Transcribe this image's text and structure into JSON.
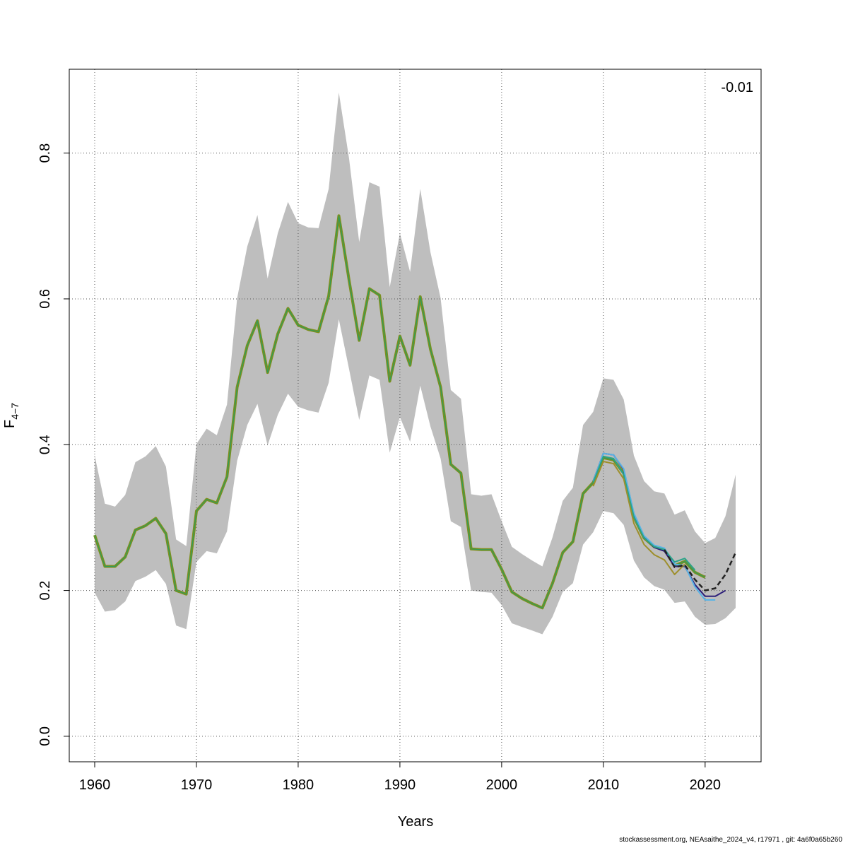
{
  "footer_text": "stockassessment.org, NEAsaithe_2024_v4, r17971 , git: 4a6f0a65b260",
  "chart_data": {
    "type": "line",
    "xlabel": "Years",
    "ylabel_main": "F",
    "ylabel_sub": "4−7",
    "annotation": "-0.01",
    "xlim": [
      1957.5,
      2025.5
    ],
    "ylim": [
      -0.035,
      0.915
    ],
    "xticks": [
      1960,
      1970,
      1980,
      1990,
      2000,
      2010,
      2020
    ],
    "yticks": [
      0.0,
      0.2,
      0.4,
      0.6,
      0.8
    ],
    "ytick_labels": [
      "0.0",
      "0.2",
      "0.4",
      "0.6",
      "0.8"
    ],
    "grid": true,
    "colors": {
      "band": "#bebebe",
      "main": "#7f8f1e",
      "main_overlay": "#2e9d5a",
      "retro_light": "#5ab4e6",
      "retro_teal": "#2aa389",
      "retro_navy": "#2d1f7a",
      "retro_olive": "#9e8f2c",
      "current_dashed": "#222222"
    },
    "years": [
      1960,
      1961,
      1962,
      1963,
      1964,
      1965,
      1966,
      1967,
      1968,
      1969,
      1970,
      1971,
      1972,
      1973,
      1974,
      1975,
      1976,
      1977,
      1978,
      1979,
      1980,
      1981,
      1982,
      1983,
      1984,
      1985,
      1986,
      1987,
      1988,
      1989,
      1990,
      1991,
      1992,
      1993,
      1994,
      1995,
      1996,
      1997,
      1998,
      1999,
      2000,
      2001,
      2002,
      2003,
      2004,
      2005,
      2006,
      2007,
      2008,
      2009,
      2010,
      2011,
      2012,
      2013,
      2014,
      2015,
      2016,
      2017,
      2018,
      2019,
      2020,
      2021,
      2022,
      2023
    ],
    "band_lower": [
      0.197,
      0.171,
      0.173,
      0.185,
      0.213,
      0.219,
      0.228,
      0.209,
      0.152,
      0.147,
      0.239,
      0.254,
      0.251,
      0.281,
      0.378,
      0.427,
      0.456,
      0.399,
      0.441,
      0.47,
      0.452,
      0.447,
      0.444,
      0.485,
      0.572,
      0.504,
      0.434,
      0.495,
      0.489,
      0.389,
      0.438,
      0.404,
      0.481,
      0.425,
      0.381,
      0.295,
      0.287,
      0.2,
      0.198,
      0.197,
      0.18,
      0.155,
      0.15,
      0.145,
      0.14,
      0.164,
      0.198,
      0.21,
      0.263,
      0.28,
      0.309,
      0.306,
      0.29,
      0.241,
      0.218,
      0.206,
      0.201,
      0.183,
      0.185,
      0.164,
      0.153,
      0.154,
      0.162,
      0.176
    ],
    "band_upper": [
      0.385,
      0.319,
      0.315,
      0.331,
      0.376,
      0.384,
      0.398,
      0.37,
      0.27,
      0.261,
      0.401,
      0.422,
      0.413,
      0.455,
      0.601,
      0.672,
      0.715,
      0.628,
      0.69,
      0.733,
      0.704,
      0.698,
      0.697,
      0.751,
      0.883,
      0.793,
      0.678,
      0.76,
      0.754,
      0.616,
      0.69,
      0.637,
      0.751,
      0.664,
      0.601,
      0.475,
      0.463,
      0.332,
      0.33,
      0.332,
      0.295,
      0.26,
      0.25,
      0.241,
      0.233,
      0.273,
      0.323,
      0.341,
      0.427,
      0.445,
      0.491,
      0.489,
      0.462,
      0.385,
      0.35,
      0.336,
      0.333,
      0.304,
      0.31,
      0.281,
      0.265,
      0.272,
      0.302,
      0.359
    ],
    "main_series": [
      0.276,
      0.233,
      0.233,
      0.246,
      0.283,
      0.289,
      0.299,
      0.278,
      0.2,
      0.195,
      0.309,
      0.325,
      0.32,
      0.356,
      0.479,
      0.536,
      0.57,
      0.499,
      0.552,
      0.587,
      0.564,
      0.558,
      0.555,
      0.604,
      0.714,
      0.626,
      0.543,
      0.614,
      0.605,
      0.487,
      0.549,
      0.509,
      0.603,
      0.531,
      0.479,
      0.373,
      0.361,
      0.257,
      0.256,
      0.256,
      0.229,
      0.198,
      0.189,
      0.182,
      0.176,
      0.21,
      0.252,
      0.267,
      0.333,
      0.348,
      0.382,
      0.379,
      0.361,
      0.301,
      0.272,
      0.26,
      0.256,
      0.234,
      0.24,
      0.225,
      0.218
    ],
    "retro_series": [
      {
        "color_key": "retro_navy",
        "from_year": 2009,
        "values": [
          0.35,
          0.388,
          0.386,
          0.366,
          0.305,
          0.273,
          0.259,
          0.254,
          0.233,
          0.233,
          0.208,
          0.192,
          0.192,
          0.2
        ]
      },
      {
        "color_key": "retro_light",
        "from_year": 2009,
        "values": [
          0.35,
          0.388,
          0.386,
          0.367,
          0.306,
          0.275,
          0.262,
          0.258,
          0.236,
          0.234,
          0.205,
          0.187,
          0.187
        ]
      },
      {
        "color_key": "retro_teal",
        "from_year": 2009,
        "values": [
          0.348,
          0.384,
          0.381,
          0.359,
          0.301,
          0.272,
          0.26,
          0.256,
          0.239,
          0.244,
          0.228
        ]
      },
      {
        "color_key": "retro_olive",
        "from_year": 2009,
        "values": [
          0.343,
          0.377,
          0.374,
          0.353,
          0.292,
          0.263,
          0.249,
          0.242,
          0.222,
          0.236
        ]
      }
    ],
    "current_series": {
      "color_key": "current_dashed",
      "from_year": 2016,
      "values": [
        0.256,
        0.232,
        0.235,
        0.215,
        0.2,
        0.203,
        0.222,
        0.252
      ]
    }
  }
}
